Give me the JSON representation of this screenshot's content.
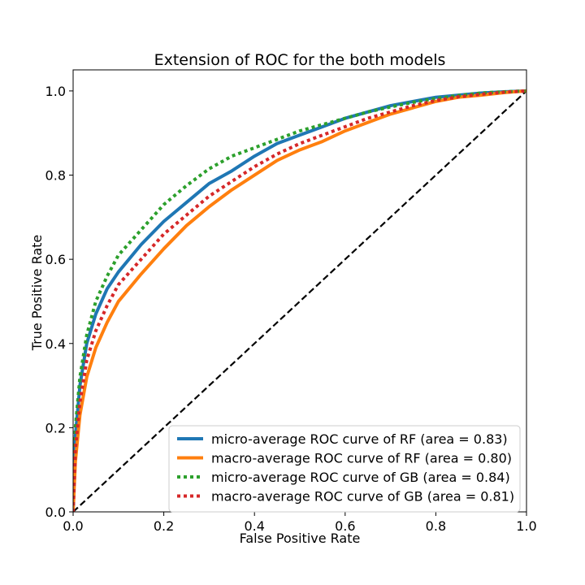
{
  "chart_data": {
    "type": "line",
    "title": "Extension of ROC for the both models",
    "xlabel": "False Positive Rate",
    "ylabel": "True Positive Rate",
    "xlim": [
      0.0,
      1.0
    ],
    "ylim": [
      0.0,
      1.05
    ],
    "x_ticks": [
      0.0,
      0.2,
      0.4,
      0.6,
      0.8,
      1.0
    ],
    "y_ticks": [
      0.0,
      0.2,
      0.4,
      0.6,
      0.8,
      1.0
    ],
    "x_tick_labels": [
      "0.0",
      "0.2",
      "0.4",
      "0.6",
      "0.8",
      "1.0"
    ],
    "y_tick_labels": [
      "0.0",
      "0.2",
      "0.4",
      "0.6",
      "0.8",
      "1.0"
    ],
    "legend_position": "lower-right",
    "grid": false,
    "series": [
      {
        "name": "micro-average ROC curve of RF (area = 0.83)",
        "color": "#1f77b4",
        "style": "solid",
        "points": [
          [
            0,
            0
          ],
          [
            0.005,
            0.18
          ],
          [
            0.015,
            0.3
          ],
          [
            0.03,
            0.4
          ],
          [
            0.05,
            0.47
          ],
          [
            0.075,
            0.53
          ],
          [
            0.1,
            0.57
          ],
          [
            0.15,
            0.635
          ],
          [
            0.2,
            0.69
          ],
          [
            0.25,
            0.735
          ],
          [
            0.3,
            0.78
          ],
          [
            0.35,
            0.81
          ],
          [
            0.4,
            0.845
          ],
          [
            0.45,
            0.875
          ],
          [
            0.5,
            0.895
          ],
          [
            0.55,
            0.915
          ],
          [
            0.6,
            0.935
          ],
          [
            0.65,
            0.95
          ],
          [
            0.7,
            0.965
          ],
          [
            0.75,
            0.975
          ],
          [
            0.8,
            0.985
          ],
          [
            0.85,
            0.99
          ],
          [
            0.9,
            0.995
          ],
          [
            0.95,
            0.998
          ],
          [
            1.0,
            1.0
          ]
        ]
      },
      {
        "name": "macro-average ROC curve of RF (area = 0.80)",
        "color": "#ff7f0e",
        "style": "solid",
        "points": [
          [
            0,
            0
          ],
          [
            0.005,
            0.12
          ],
          [
            0.015,
            0.23
          ],
          [
            0.03,
            0.32
          ],
          [
            0.05,
            0.39
          ],
          [
            0.075,
            0.45
          ],
          [
            0.1,
            0.5
          ],
          [
            0.15,
            0.565
          ],
          [
            0.2,
            0.625
          ],
          [
            0.25,
            0.68
          ],
          [
            0.3,
            0.725
          ],
          [
            0.35,
            0.765
          ],
          [
            0.4,
            0.8
          ],
          [
            0.45,
            0.835
          ],
          [
            0.5,
            0.86
          ],
          [
            0.55,
            0.88
          ],
          [
            0.6,
            0.905
          ],
          [
            0.65,
            0.925
          ],
          [
            0.7,
            0.945
          ],
          [
            0.75,
            0.96
          ],
          [
            0.8,
            0.975
          ],
          [
            0.85,
            0.985
          ],
          [
            0.9,
            0.99
          ],
          [
            0.95,
            0.996
          ],
          [
            1.0,
            1.0
          ]
        ]
      },
      {
        "name": "micro-average ROC curve of GB (area = 0.84)",
        "color": "#2ca02c",
        "style": "dotted",
        "points": [
          [
            0,
            0
          ],
          [
            0.005,
            0.2
          ],
          [
            0.015,
            0.32
          ],
          [
            0.03,
            0.42
          ],
          [
            0.05,
            0.5
          ],
          [
            0.075,
            0.56
          ],
          [
            0.1,
            0.61
          ],
          [
            0.15,
            0.67
          ],
          [
            0.2,
            0.73
          ],
          [
            0.25,
            0.775
          ],
          [
            0.3,
            0.815
          ],
          [
            0.35,
            0.845
          ],
          [
            0.4,
            0.865
          ],
          [
            0.45,
            0.885
          ],
          [
            0.5,
            0.905
          ],
          [
            0.55,
            0.92
          ],
          [
            0.6,
            0.935
          ],
          [
            0.65,
            0.95
          ],
          [
            0.7,
            0.962
          ],
          [
            0.75,
            0.973
          ],
          [
            0.8,
            0.982
          ],
          [
            0.85,
            0.989
          ],
          [
            0.9,
            0.995
          ],
          [
            0.95,
            0.998
          ],
          [
            1.0,
            1.0
          ]
        ]
      },
      {
        "name": "macro-average ROC curve of GB (area = 0.81)",
        "color": "#d62728",
        "style": "dotted",
        "points": [
          [
            0,
            0
          ],
          [
            0.005,
            0.15
          ],
          [
            0.015,
            0.26
          ],
          [
            0.03,
            0.36
          ],
          [
            0.05,
            0.43
          ],
          [
            0.075,
            0.49
          ],
          [
            0.1,
            0.54
          ],
          [
            0.15,
            0.6
          ],
          [
            0.2,
            0.66
          ],
          [
            0.25,
            0.705
          ],
          [
            0.3,
            0.75
          ],
          [
            0.35,
            0.785
          ],
          [
            0.4,
            0.82
          ],
          [
            0.45,
            0.85
          ],
          [
            0.5,
            0.875
          ],
          [
            0.55,
            0.895
          ],
          [
            0.6,
            0.915
          ],
          [
            0.65,
            0.935
          ],
          [
            0.7,
            0.95
          ],
          [
            0.75,
            0.965
          ],
          [
            0.8,
            0.977
          ],
          [
            0.85,
            0.986
          ],
          [
            0.9,
            0.992
          ],
          [
            0.95,
            0.997
          ],
          [
            1.0,
            1.0
          ]
        ]
      },
      {
        "name": "",
        "color": "#000000",
        "style": "dashed",
        "points": [
          [
            0,
            0
          ],
          [
            1,
            1
          ]
        ]
      }
    ]
  }
}
